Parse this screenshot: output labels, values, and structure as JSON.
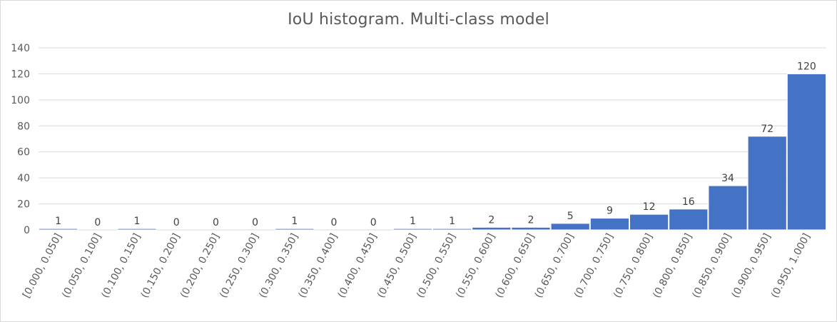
{
  "chart_data": {
    "type": "bar",
    "title": "IoU histogram. Multi-class model",
    "xlabel": "",
    "ylabel": "",
    "ylim": [
      0,
      140
    ],
    "yticks": [
      0,
      20,
      40,
      60,
      80,
      100,
      120,
      140
    ],
    "grid": true,
    "bar_color": "#4472C4",
    "categories": [
      "[0.000, 0.050]",
      "(0.050, 0.100]",
      "(0.100, 0.150]",
      "(0.150, 0.200]",
      "(0.200, 0.250]",
      "(0.250, 0.300]",
      "(0.300, 0.350]",
      "(0.350, 0.400]",
      "(0.400, 0.450]",
      "(0.450, 0.500]",
      "(0.500, 0.550]",
      "(0.550, 0.600]",
      "(0.600, 0.650]",
      "(0.650, 0.700]",
      "(0.700, 0.750]",
      "(0.750, 0.800]",
      "(0.800, 0.850]",
      "(0.850, 0.900]",
      "(0.900, 0.950]",
      "(0.950, 1.000]"
    ],
    "values": [
      1,
      0,
      1,
      0,
      0,
      0,
      1,
      0,
      0,
      1,
      1,
      2,
      2,
      5,
      9,
      12,
      16,
      34,
      72,
      120
    ]
  }
}
